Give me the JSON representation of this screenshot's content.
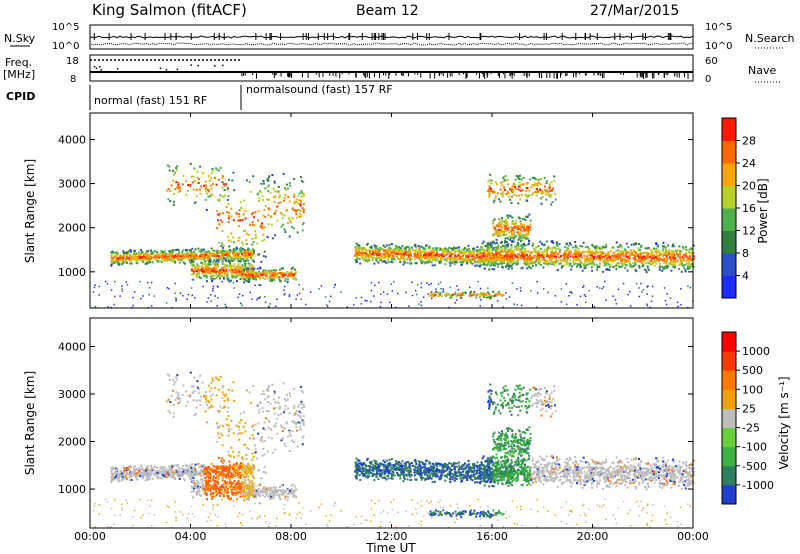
{
  "header": {
    "station": "King Salmon (fitACF)",
    "beam": "Beam 12",
    "date": "27/Mar/2015"
  },
  "noise_panel": {
    "left_label": "N.Sky",
    "right_label": "N.Search",
    "ticks_left": [
      "10^5",
      "10^0"
    ],
    "ticks_right": [
      "10^5",
      "10^0"
    ]
  },
  "freq_panel": {
    "left_label_1": "Freq.",
    "left_label_2": "[MHz]",
    "ticks_left": [
      "18",
      "8"
    ],
    "right_label": "Nave",
    "ticks_right": [
      "60",
      "0"
    ]
  },
  "cpid_panel": {
    "label": "CPID",
    "segments": [
      {
        "label": "normal (fast) 151 RF",
        "start_hour": 0,
        "end_hour": 6
      },
      {
        "label": "normalsound (fast) 157 RF",
        "start_hour": 6,
        "end_hour": 24
      }
    ]
  },
  "chart_data": [
    {
      "type": "heatmap",
      "title": "",
      "ylabel": "Slant Range [km]",
      "xlabel": "",
      "yticks": [
        "1000",
        "2000",
        "3000",
        "4000"
      ],
      "ylim": [
        180,
        4600
      ],
      "xlim": [
        0,
        24
      ],
      "colorbar": {
        "label": "Power [dB]",
        "ticks": [
          "4",
          "8",
          "12",
          "16",
          "20",
          "24",
          "28"
        ],
        "colors": [
          "#1f2bff",
          "#2a4fc8",
          "#2f7f3f",
          "#4cb04c",
          "#b8d02a",
          "#f7a800",
          "#ff6a00",
          "#ff1a00"
        ]
      }
    },
    {
      "type": "heatmap",
      "title": "",
      "ylabel": "Slant Range [km]",
      "xlabel": "Time UT",
      "xticks": [
        "00:00",
        "04:00",
        "08:00",
        "12:00",
        "16:00",
        "20:00",
        "00:00"
      ],
      "yticks": [
        "1000",
        "2000",
        "3000",
        "4000"
      ],
      "ylim": [
        180,
        4600
      ],
      "xlim": [
        0,
        24
      ],
      "colorbar": {
        "label": "Velocity [m s⁻¹]",
        "ticks": [
          "1000",
          "500",
          "100",
          "25",
          "-25",
          "-100",
          "-500",
          "-1000"
        ],
        "colors": [
          "#1f3fd0",
          "#2e7f60",
          "#3cb040",
          "#6acd3a",
          "#bdbdbd",
          "#f0a000",
          "#ff7a00",
          "#ff3a00",
          "#ff0000"
        ]
      }
    }
  ]
}
